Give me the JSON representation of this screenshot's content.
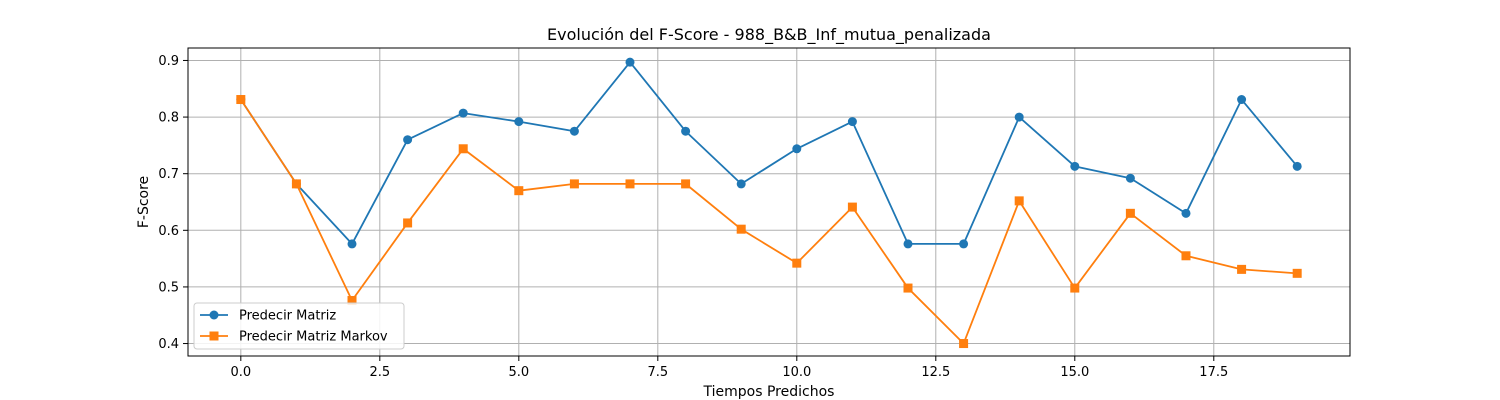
{
  "chart_data": {
    "type": "line",
    "title": "Evolución del F-Score - 988_B&B_Inf_mutua_penalizada",
    "xlabel": "Tiempos Predichos",
    "ylabel": "F-Score",
    "x": [
      0,
      1,
      2,
      3,
      4,
      5,
      6,
      7,
      8,
      9,
      10,
      11,
      12,
      13,
      14,
      15,
      16,
      17,
      18,
      19
    ],
    "xlim": [
      -0.95,
      19.95
    ],
    "ylim": [
      0.378,
      0.922
    ],
    "xticks": [
      0.0,
      2.5,
      5.0,
      7.5,
      10.0,
      12.5,
      15.0,
      17.5
    ],
    "xtick_labels": [
      "0.0",
      "2.5",
      "5.0",
      "7.5",
      "10.0",
      "12.5",
      "15.0",
      "17.5"
    ],
    "yticks": [
      0.4,
      0.5,
      0.6,
      0.7,
      0.8,
      0.9
    ],
    "ytick_labels": [
      "0.4",
      "0.5",
      "0.6",
      "0.7",
      "0.8",
      "0.9"
    ],
    "grid": true,
    "legend_position": "lower-left",
    "series": [
      {
        "name": "Predecir Matriz",
        "color": "#1f77b4",
        "marker": "circle",
        "values": [
          0.831,
          0.682,
          0.576,
          0.76,
          0.807,
          0.792,
          0.775,
          0.897,
          0.775,
          0.682,
          0.744,
          0.792,
          0.576,
          0.576,
          0.8,
          0.713,
          0.692,
          0.63,
          0.831,
          0.713
        ]
      },
      {
        "name": "Predecir Matriz Markov",
        "color": "#ff7f0e",
        "marker": "square",
        "values": [
          0.831,
          0.682,
          0.476,
          0.613,
          0.744,
          0.67,
          0.682,
          0.682,
          0.682,
          0.602,
          0.542,
          0.641,
          0.498,
          0.4,
          0.652,
          0.498,
          0.63,
          0.555,
          0.531,
          0.524
        ]
      }
    ]
  }
}
